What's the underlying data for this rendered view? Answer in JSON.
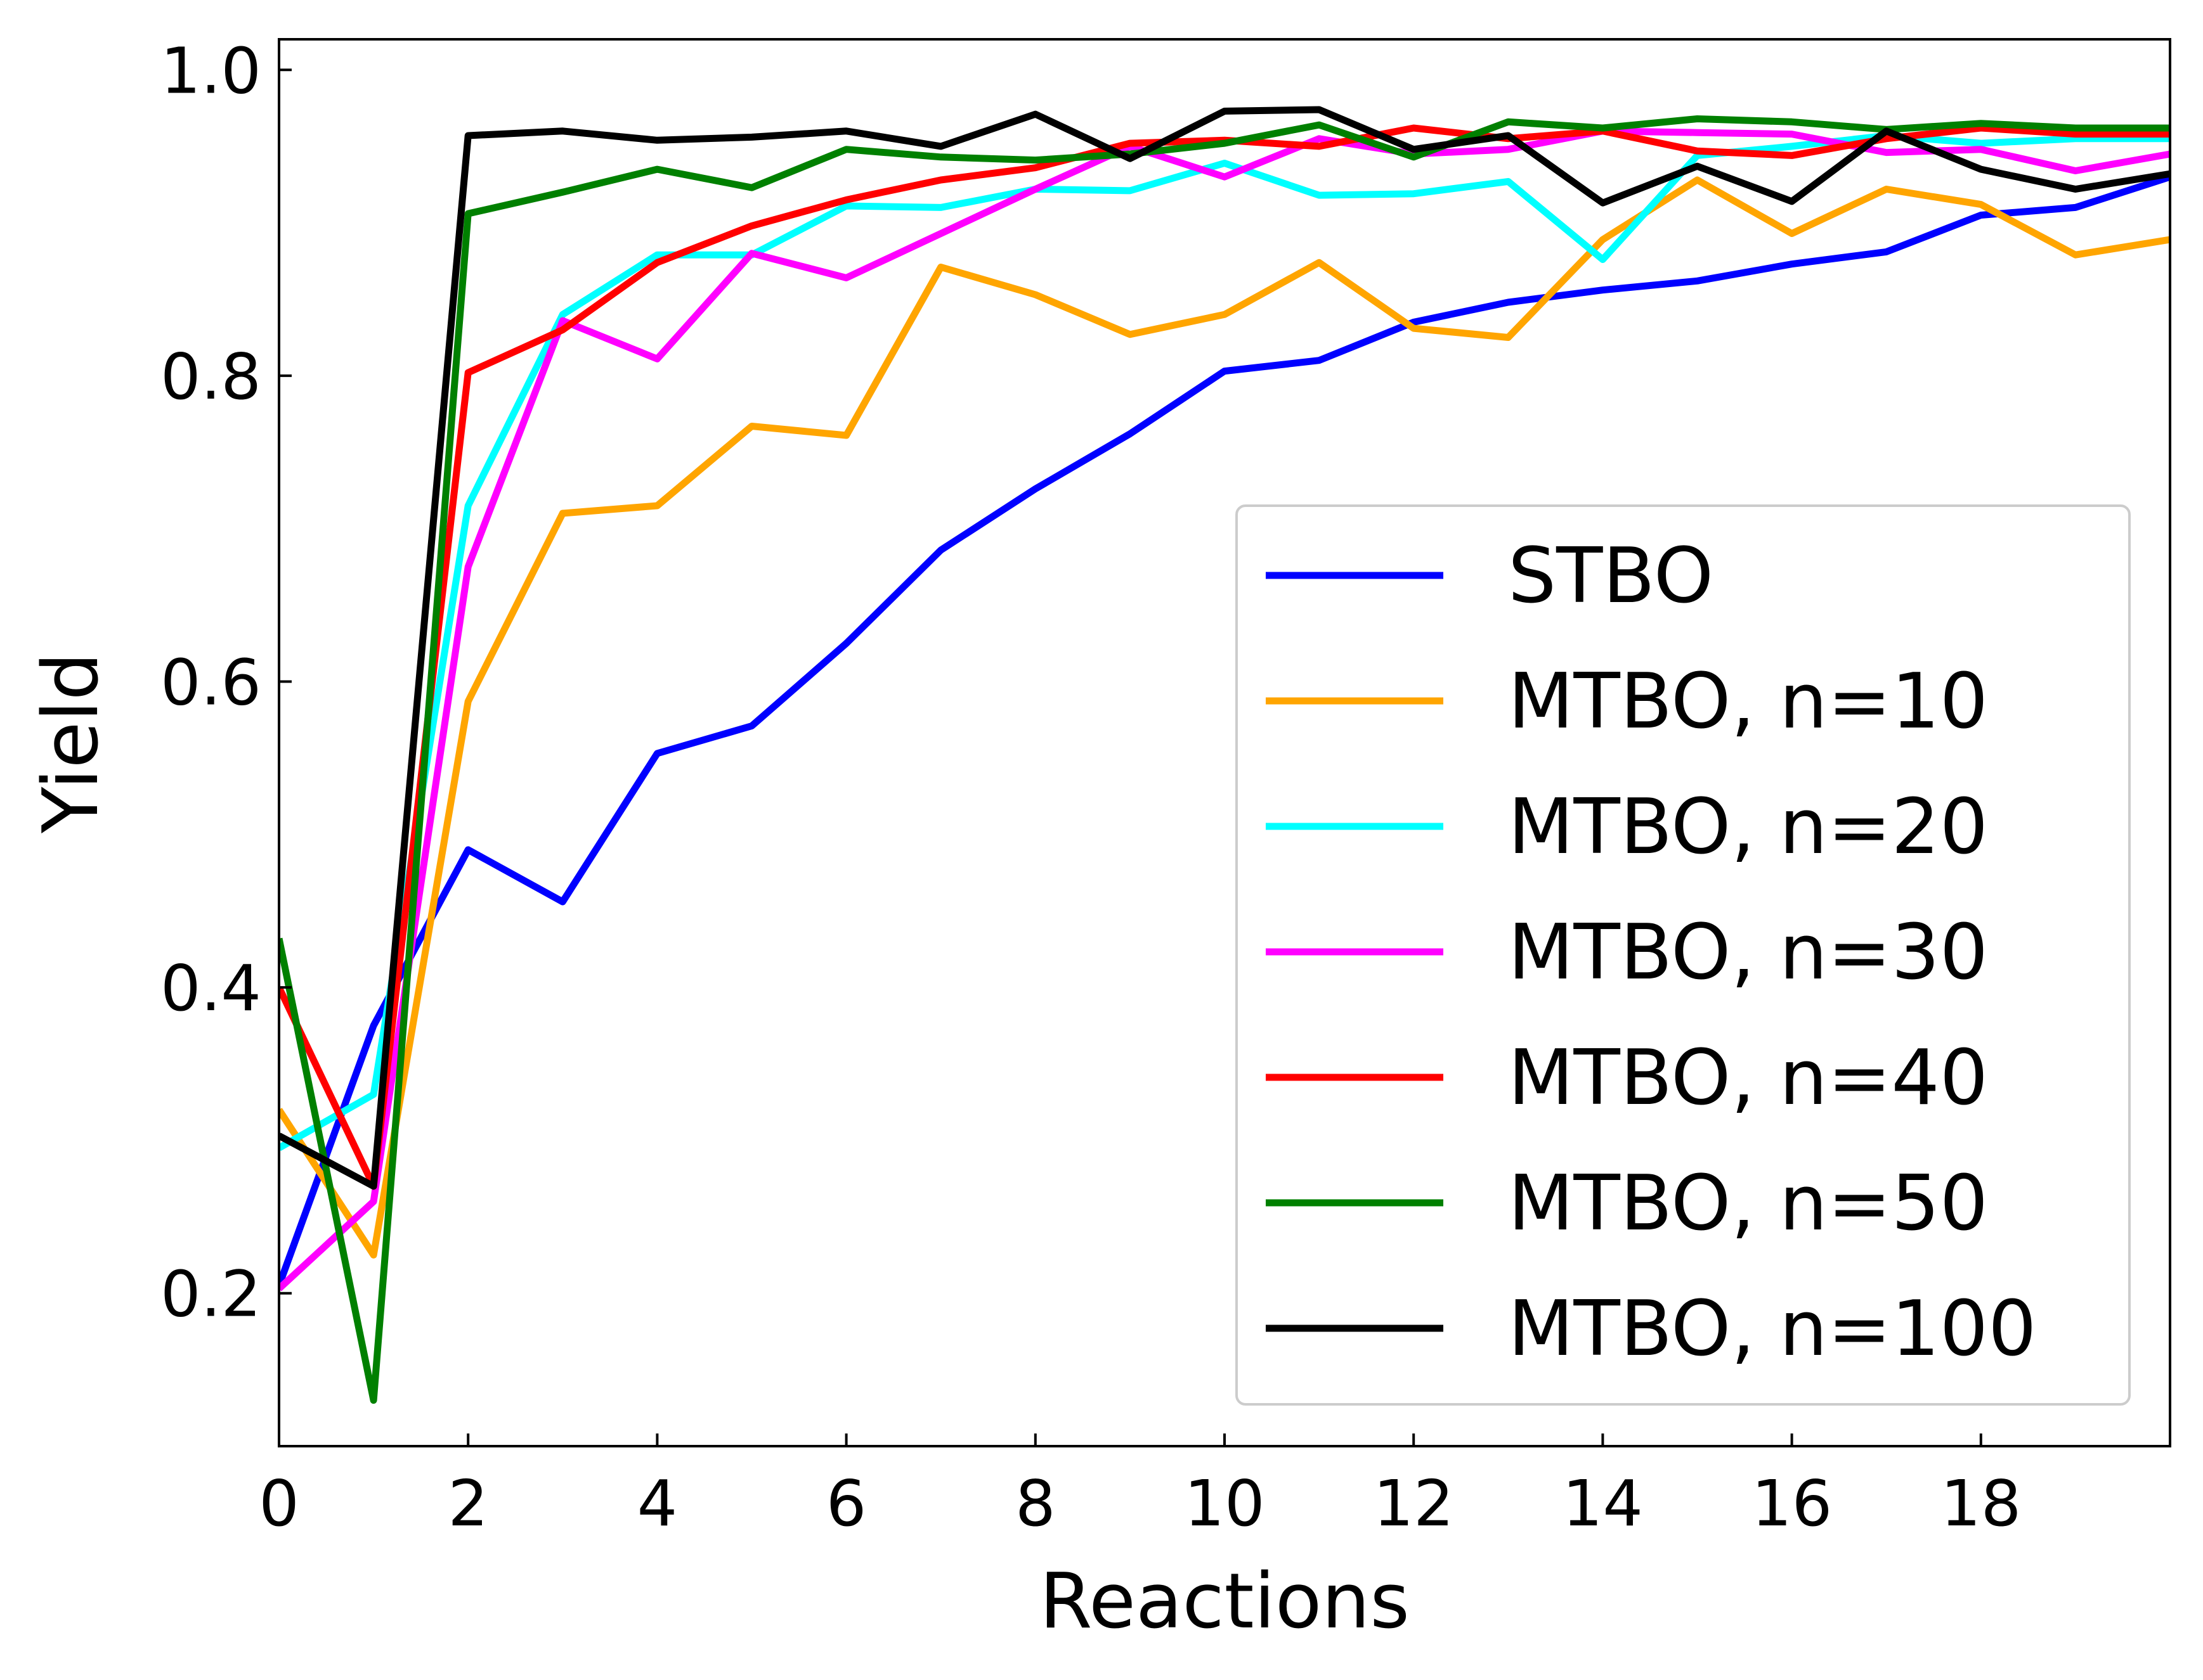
{
  "chart_data": {
    "type": "line",
    "xlabel": "Reactions",
    "ylabel": "Yield",
    "xlim": [
      0,
      20
    ],
    "ylim": [
      0.1,
      1.02
    ],
    "x_ticks": [
      0,
      2,
      4,
      6,
      8,
      10,
      12,
      14,
      16,
      18
    ],
    "y_ticks": [
      0.2,
      0.4,
      0.6,
      0.8,
      1.0
    ],
    "x_tick_labels": [
      "0",
      "2",
      "4",
      "6",
      "8",
      "10",
      "12",
      "14",
      "16",
      "18"
    ],
    "y_tick_labels": [
      "0.2",
      "0.4",
      "0.6",
      "0.8",
      "1.0"
    ],
    "grid": false,
    "tick_direction": "in",
    "legend_position": "bottom-right",
    "x": [
      0,
      1,
      2,
      3,
      4,
      5,
      6,
      7,
      8,
      9,
      10,
      11,
      12,
      13,
      14,
      15,
      16,
      17,
      18,
      19,
      20
    ],
    "series": [
      {
        "name": "STBO",
        "color": "#0000ff",
        "values": [
          0.205,
          0.375,
          0.49,
          0.456,
          0.553,
          0.571,
          0.625,
          0.686,
          0.726,
          0.762,
          0.803,
          0.81,
          0.835,
          0.848,
          0.856,
          0.862,
          0.873,
          0.881,
          0.905,
          0.91,
          0.93
        ]
      },
      {
        "name": "MTBO, n=10",
        "color": "#ffa500",
        "values": [
          0.32,
          0.225,
          0.587,
          0.71,
          0.715,
          0.767,
          0.761,
          0.871,
          0.853,
          0.827,
          0.84,
          0.874,
          0.831,
          0.825,
          0.889,
          0.928,
          0.893,
          0.922,
          0.912,
          0.879,
          0.889
        ]
      },
      {
        "name": "MTBO, n=20",
        "color": "#00ffff",
        "values": [
          0.295,
          0.33,
          0.715,
          0.84,
          0.879,
          0.879,
          0.911,
          0.91,
          0.922,
          0.921,
          0.939,
          0.918,
          0.919,
          0.927,
          0.876,
          0.944,
          0.95,
          0.957,
          0.952,
          0.955,
          0.955
        ]
      },
      {
        "name": "MTBO, n=30",
        "color": "#ff00ff",
        "values": [
          0.203,
          0.26,
          0.675,
          0.836,
          0.811,
          0.88,
          0.864,
          0.893,
          0.922,
          0.95,
          0.93,
          0.955,
          0.945,
          0.948,
          0.96,
          0.959,
          0.958,
          0.946,
          0.948,
          0.934,
          0.945
        ]
      },
      {
        "name": "MTBO, n=40",
        "color": "#ff0000",
        "values": [
          0.4,
          0.27,
          0.802,
          0.83,
          0.874,
          0.898,
          0.915,
          0.928,
          0.936,
          0.952,
          0.954,
          0.95,
          0.962,
          0.955,
          0.96,
          0.947,
          0.944,
          0.955,
          0.962,
          0.958,
          0.958
        ]
      },
      {
        "name": "MTBO, n=50",
        "color": "#008000",
        "values": [
          0.432,
          0.13,
          0.906,
          0.92,
          0.935,
          0.923,
          0.948,
          0.943,
          0.941,
          0.945,
          0.952,
          0.964,
          0.943,
          0.966,
          0.962,
          0.968,
          0.966,
          0.961,
          0.965,
          0.962,
          0.962
        ]
      },
      {
        "name": "MTBO, n=100",
        "color": "#000000",
        "values": [
          0.303,
          0.27,
          0.957,
          0.96,
          0.954,
          0.956,
          0.96,
          0.95,
          0.971,
          0.942,
          0.973,
          0.974,
          0.948,
          0.957,
          0.913,
          0.937,
          0.914,
          0.96,
          0.935,
          0.922,
          0.932
        ]
      }
    ]
  }
}
